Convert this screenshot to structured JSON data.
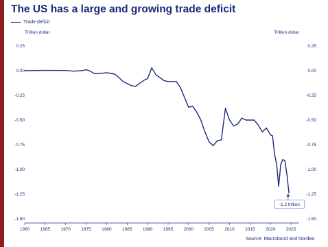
{
  "title": "The US has a large and growing trade deficit",
  "legend": {
    "label": "Trade deficit"
  },
  "source": "Source: Macrobond and Nordea",
  "colors": {
    "line": "#1b2a7a",
    "text": "#1b2a7a",
    "grid": "#d6d8e6"
  },
  "chart_data": {
    "type": "line",
    "title": "The US has a large and growing trade deficit",
    "ylabel_left": "Trillion dollar",
    "ylabel_right": "Trillion dollar",
    "xlim": [
      1960,
      2027
    ],
    "ylim": [
      -1.5,
      0.25
    ],
    "xticks": [
      1960,
      1965,
      1970,
      1975,
      1980,
      1985,
      1990,
      1995,
      2000,
      2005,
      2010,
      2015,
      2020,
      2025
    ],
    "xtick_labels": [
      "1960",
      "1965",
      "1970",
      "1975",
      "1980",
      "1985",
      "1990",
      "1995",
      "2000",
      "2005",
      "2010",
      "2015",
      "2020",
      "2025"
    ],
    "yticks": [
      0.25,
      0,
      -0.25,
      -0.5,
      -0.75,
      -1,
      -1.25,
      -1.5
    ],
    "ytick_labels": [
      "0.25",
      "0.00",
      "-0.25",
      "-0.50",
      "-0.75",
      "-1.00",
      "-1.25",
      "-1.50"
    ],
    "grid": false,
    "legend_position": "top-left",
    "annotation": {
      "text": "-1.2 trillion",
      "x": 2024.3,
      "y": -1.24
    },
    "series": [
      {
        "name": "Trade deficit",
        "x": [
          1960,
          1965,
          1970,
          1972,
          1974,
          1975,
          1976,
          1977,
          1978,
          1980,
          1982,
          1983,
          1984,
          1985,
          1986,
          1987,
          1988,
          1989,
          1990,
          1991,
          1992,
          1993,
          1994,
          1995,
          1996,
          1997,
          1998,
          1999,
          2000,
          2001,
          2002,
          2003,
          2004,
          2005,
          2006,
          2007,
          2008,
          2009,
          2010,
          2011,
          2012,
          2013,
          2014,
          2015,
          2016,
          2017,
          2018,
          2019,
          2020,
          2020.5,
          2021,
          2021.5,
          2022,
          2022.5,
          2023,
          2023.5,
          2024,
          2024.5
        ],
        "y": [
          0.0,
          0.003,
          0.002,
          -0.005,
          0.0,
          0.01,
          -0.005,
          -0.03,
          -0.03,
          -0.02,
          -0.035,
          -0.07,
          -0.11,
          -0.13,
          -0.15,
          -0.16,
          -0.13,
          -0.1,
          -0.08,
          0.03,
          -0.04,
          -0.07,
          -0.1,
          -0.11,
          -0.11,
          -0.11,
          -0.17,
          -0.27,
          -0.37,
          -0.36,
          -0.42,
          -0.5,
          -0.62,
          -0.72,
          -0.76,
          -0.71,
          -0.7,
          -0.38,
          -0.5,
          -0.56,
          -0.54,
          -0.48,
          -0.5,
          -0.5,
          -0.5,
          -0.55,
          -0.62,
          -0.58,
          -0.65,
          -0.66,
          -0.85,
          -0.95,
          -1.17,
          -0.95,
          -0.9,
          -0.91,
          -1.05,
          -1.24
        ]
      }
    ]
  }
}
